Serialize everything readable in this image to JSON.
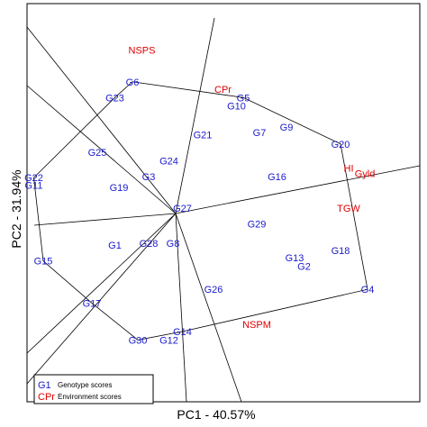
{
  "chart_data": {
    "type": "scatter",
    "title": "",
    "xlabel": "PC1 - 40.57%",
    "ylabel": "PC2 - 31.94%",
    "origin_label": "G27",
    "colors": {
      "genotype": "#1a1acc",
      "environment": "#e00000",
      "lines": "#000000"
    },
    "legend": {
      "position": "bottom-left",
      "entries": [
        {
          "symbol": "G1",
          "label": "Genotype scores",
          "color": "#1a1acc"
        },
        {
          "symbol": "CPr",
          "label": "Environment scores",
          "color": "#e00000"
        }
      ]
    },
    "genotypes": [
      {
        "label": "G1",
        "x": -0.45,
        "y": -0.3
      },
      {
        "label": "G2",
        "x": 0.95,
        "y": -0.5
      },
      {
        "label": "G3",
        "x": -0.2,
        "y": 0.35
      },
      {
        "label": "G4",
        "x": 1.42,
        "y": -0.72
      },
      {
        "label": "G5",
        "x": 0.5,
        "y": 1.1
      },
      {
        "label": "G6",
        "x": -0.32,
        "y": 1.25
      },
      {
        "label": "G7",
        "x": 0.62,
        "y": 0.77
      },
      {
        "label": "G8",
        "x": -0.02,
        "y": -0.28
      },
      {
        "label": "G9",
        "x": 0.82,
        "y": 0.82
      },
      {
        "label": "G10",
        "x": 0.45,
        "y": 1.02
      },
      {
        "label": "G12",
        "x": -0.05,
        "y": -1.2
      },
      {
        "label": "G13",
        "x": 0.88,
        "y": -0.42
      },
      {
        "label": "G14",
        "x": 0.05,
        "y": -1.12
      },
      {
        "label": "G15",
        "x": -0.98,
        "y": -0.45
      },
      {
        "label": "G16",
        "x": 0.75,
        "y": 0.35
      },
      {
        "label": "G17",
        "x": -0.62,
        "y": -0.85
      },
      {
        "label": "G18",
        "x": 1.22,
        "y": -0.35
      },
      {
        "label": "G19",
        "x": -0.42,
        "y": 0.25
      },
      {
        "label": "G20",
        "x": 1.22,
        "y": 0.66
      },
      {
        "label": "G21",
        "x": 0.2,
        "y": 0.75
      },
      {
        "label": "G22",
        "x": -1.05,
        "y": 0.34
      },
      {
        "label": "G23",
        "x": -0.45,
        "y": 1.1
      },
      {
        "label": "G24",
        "x": -0.05,
        "y": 0.5
      },
      {
        "label": "G25",
        "x": -0.58,
        "y": 0.58
      },
      {
        "label": "G26",
        "x": 0.28,
        "y": -0.72
      },
      {
        "label": "G28",
        "x": -0.2,
        "y": -0.28
      },
      {
        "label": "G29",
        "x": 0.6,
        "y": -0.1
      },
      {
        "label": "G30",
        "x": -0.28,
        "y": -1.2
      },
      {
        "label": "G11",
        "x": -1.05,
        "y": 0.27
      },
      {
        "label": "G27",
        "x": 0.05,
        "y": 0.05
      }
    ],
    "environments": [
      {
        "label": "NSPS",
        "x": -0.25,
        "y": 1.55
      },
      {
        "label": "CPr",
        "x": 0.35,
        "y": 1.18
      },
      {
        "label": "HI",
        "x": 1.28,
        "y": 0.43
      },
      {
        "label": "Gyld",
        "x": 1.4,
        "y": 0.38
      },
      {
        "label": "TGW",
        "x": 1.28,
        "y": 0.05
      },
      {
        "label": "NSPM",
        "x": 0.6,
        "y": -1.05
      }
    ]
  }
}
